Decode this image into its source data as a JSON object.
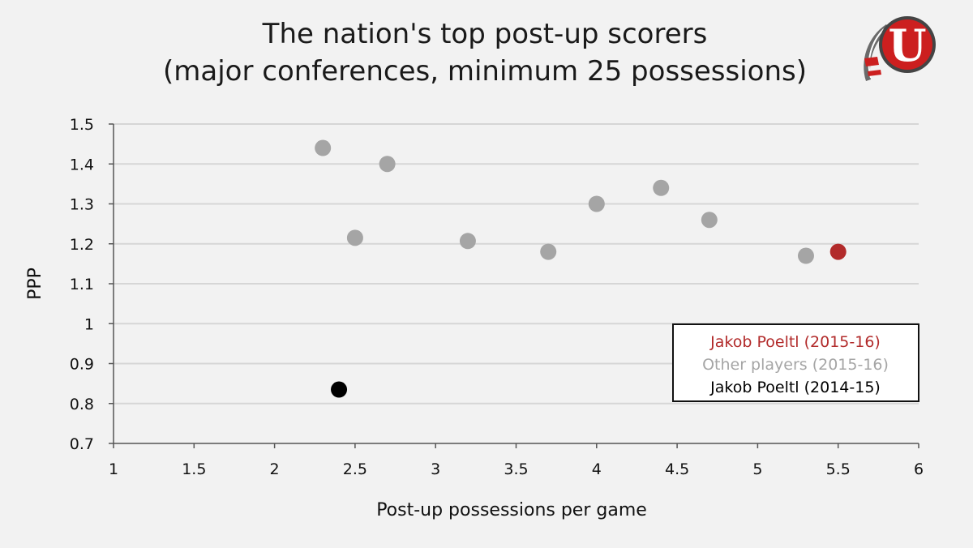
{
  "chart_data": {
    "type": "scatter",
    "title": "The nation's top post-up scorers",
    "subtitle": "(major conferences, minimum 25 possessions)",
    "xlabel": "Post-up possessions per game",
    "ylabel": "PPP",
    "xlim": [
      1,
      6
    ],
    "ylim": [
      0.7,
      1.5
    ],
    "x_ticks": [
      "1",
      "1.5",
      "2",
      "2.5",
      "3",
      "3.5",
      "4",
      "4.5",
      "5",
      "5.5",
      "6"
    ],
    "y_ticks": [
      "0.7",
      "0.8",
      "0.9",
      "1",
      "1.1",
      "1.2",
      "1.3",
      "1.4",
      "1.5"
    ],
    "grid": "horizontal",
    "legend_position": "bottom-right",
    "series": [
      {
        "name": "Jakob Poeltl  (2015-16)",
        "color": "#b22b2b",
        "points": [
          [
            5.5,
            1.18
          ]
        ]
      },
      {
        "name": "Other players (2015-16)",
        "color": "#a5a5a5",
        "points": [
          [
            2.3,
            1.44
          ],
          [
            2.7,
            1.4
          ],
          [
            2.5,
            1.215
          ],
          [
            3.2,
            1.207
          ],
          [
            3.7,
            1.18
          ],
          [
            4.0,
            1.3
          ],
          [
            4.4,
            1.34
          ],
          [
            4.7,
            1.26
          ],
          [
            5.3,
            1.17
          ]
        ]
      },
      {
        "name": "Jakob Poeltl (2014-15)",
        "color": "#000000",
        "points": [
          [
            2.4,
            0.835
          ]
        ]
      }
    ]
  },
  "logo": {
    "letter": "U",
    "colors": {
      "red": "#cc1f1f",
      "white": "#ffffff",
      "dark": "#333333"
    },
    "icon": "utah-utes-drum-feather-logo"
  }
}
